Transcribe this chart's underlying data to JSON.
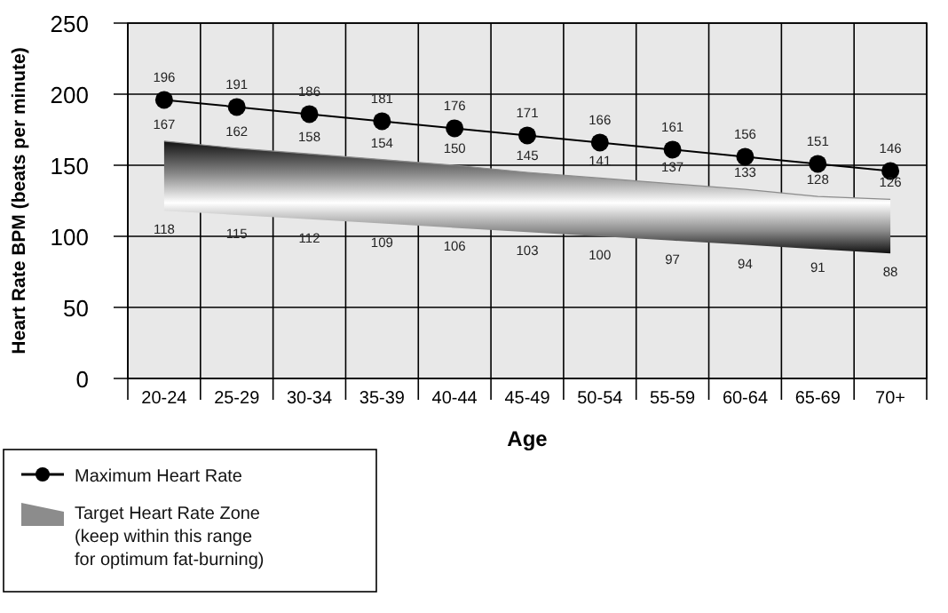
{
  "chart_data": {
    "type": "line",
    "xlabel": "Age",
    "ylabel": "Heart Rate BPM (beats per minute)",
    "categories": [
      "20-24",
      "25-29",
      "30-34",
      "35-39",
      "40-44",
      "45-49",
      "50-54",
      "55-59",
      "60-64",
      "65-69",
      "70+"
    ],
    "series": [
      {
        "name": "Maximum Heart Rate",
        "color": "#000000",
        "marker": "circle",
        "values": [
          196,
          191,
          186,
          181,
          176,
          171,
          166,
          161,
          156,
          151,
          146
        ]
      },
      {
        "name": "Target Heart Rate Zone\n(keep within this range\nfor optimum fat-burning)",
        "color": "#8c8c8c",
        "marker": "none",
        "values": [
          167,
          162,
          158,
          154,
          150,
          145,
          141,
          137,
          133,
          128,
          126
        ],
        "upper": [
          167,
          162,
          158,
          154,
          150,
          145,
          141,
          137,
          133,
          128,
          126
        ],
        "lower": [
          118,
          115,
          112,
          109,
          106,
          103,
          100,
          97,
          94,
          91,
          88
        ]
      }
    ],
    "annotations": [
      {
        "text": "118",
        "x": "20-24",
        "y": 118
      },
      {
        "text": "115",
        "x": "25-29",
        "y": 115
      },
      {
        "text": "112",
        "x": "30-34",
        "y": 112
      },
      {
        "text": "109",
        "x": "35-39",
        "y": 109
      },
      {
        "text": "106",
        "x": "40-44",
        "y": 106
      },
      {
        "text": "103",
        "x": "45-49",
        "y": 103
      },
      {
        "text": "100",
        "x": "50-54",
        "y": 100
      },
      {
        "text": "97",
        "x": "55-59",
        "y": 97
      },
      {
        "text": "94",
        "x": "60-64",
        "y": 94
      },
      {
        "text": "91",
        "x": "65-69",
        "y": 91
      },
      {
        "text": "88",
        "x": "70+",
        "y": 88
      }
    ],
    "ylim": [
      0,
      250
    ],
    "yticks": [
      0,
      50,
      100,
      150,
      200,
      250
    ],
    "grid": true,
    "data_labels": true,
    "legend": "bottom left"
  }
}
